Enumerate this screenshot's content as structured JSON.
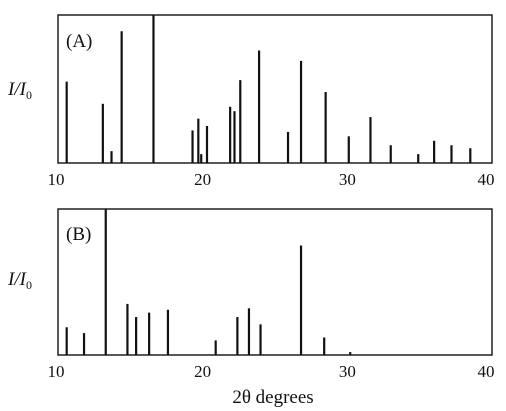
{
  "chart_data": [
    {
      "type": "bar",
      "panel_label": "(A)",
      "ylabel_main": "I/I",
      "ylabel_sub": "0",
      "xlim": [
        10,
        40
      ],
      "ylim": [
        0,
        1.0
      ],
      "xticks": [
        10,
        20,
        30,
        40
      ],
      "x": [
        10.6,
        13.1,
        13.7,
        14.4,
        16.6,
        19.3,
        19.7,
        19.9,
        20.3,
        21.9,
        22.2,
        22.6,
        23.9,
        25.9,
        26.8,
        28.5,
        30.1,
        31.6,
        33.0,
        34.9,
        36.0,
        37.2,
        38.5
      ],
      "y": [
        0.55,
        0.4,
        0.08,
        0.89,
        1.0,
        0.22,
        0.3,
        0.06,
        0.25,
        0.38,
        0.35,
        0.56,
        0.76,
        0.21,
        0.69,
        0.48,
        0.18,
        0.31,
        0.12,
        0.06,
        0.15,
        0.12,
        0.1
      ]
    },
    {
      "type": "bar",
      "panel_label": "(B)",
      "ylabel_main": "I/I",
      "ylabel_sub": "0",
      "xlim": [
        10,
        40
      ],
      "ylim": [
        0,
        1.0
      ],
      "xticks": [
        10,
        20,
        30,
        40
      ],
      "xlabel": "2θ degrees",
      "x": [
        10.6,
        11.8,
        13.3,
        14.8,
        15.4,
        16.3,
        17.6,
        20.9,
        22.4,
        23.2,
        24.0,
        26.8,
        28.4,
        30.2
      ],
      "y": [
        0.19,
        0.15,
        1.0,
        0.35,
        0.26,
        0.29,
        0.31,
        0.1,
        0.26,
        0.32,
        0.21,
        0.75,
        0.12,
        0.02
      ]
    }
  ]
}
